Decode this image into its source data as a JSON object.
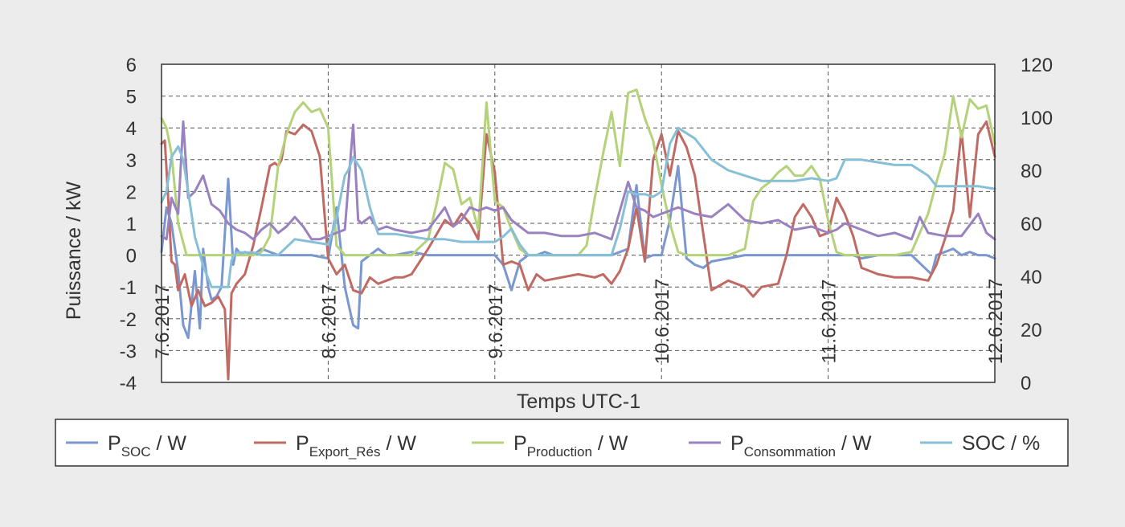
{
  "chart_data": {
    "type": "line",
    "xlabel": "Temps UTC-1",
    "ylabel": "Puissance / kW",
    "ylim": [
      -4,
      6
    ],
    "y2lim": [
      0,
      120
    ],
    "y_ticks": [
      "-4",
      "-3",
      "-2",
      "-1",
      "0",
      "1",
      "2",
      "3",
      "4",
      "5",
      "6"
    ],
    "y2_ticks": [
      "0",
      "20",
      "40",
      "60",
      "80",
      "100",
      "120"
    ],
    "x_ticks": [
      "7.6.2017",
      "8.6.2017",
      "9.6.2017",
      "10.6.2017",
      "11.6.2017",
      "12.6.2017"
    ],
    "xlim": [
      0,
      5
    ],
    "grid": true,
    "legend_position": "bottom",
    "colors": {
      "soc_power": "#7b97cf",
      "export": "#c06a64",
      "production": "#b4d27a",
      "consumption": "#9a82c0",
      "soc": "#87c0d6"
    },
    "series": [
      {
        "key": "soc_power",
        "legend_main": "P",
        "legend_sub": "SOC",
        "legend_rest": " / W",
        "axis": "left",
        "x": [
          0,
          0.03,
          0.06,
          0.1,
          0.13,
          0.16,
          0.2,
          0.23,
          0.25,
          0.28,
          0.3,
          0.33,
          0.36,
          0.4,
          0.43,
          0.45,
          0.48,
          0.5,
          0.55,
          0.6,
          0.65,
          0.7,
          0.75,
          0.8,
          0.9,
          1.0,
          1.05,
          1.1,
          1.15,
          1.18,
          1.2,
          1.25,
          1.3,
          1.35,
          1.4,
          1.5,
          1.6,
          1.7,
          1.8,
          1.9,
          1.95,
          2.0,
          2.05,
          2.1,
          2.15,
          2.2,
          2.25,
          2.3,
          2.35,
          2.4,
          2.5,
          2.6,
          2.7,
          2.8,
          2.85,
          2.9,
          2.95,
          3.0,
          3.05,
          3.1,
          3.15,
          3.2,
          3.25,
          3.3,
          3.4,
          3.5,
          3.6,
          3.7,
          3.8,
          3.9,
          4.0,
          4.05,
          4.1,
          4.15,
          4.2,
          4.3,
          4.4,
          4.5,
          4.6,
          4.62,
          4.65,
          4.7,
          4.75,
          4.8,
          4.85,
          4.9,
          4.95,
          5.0
        ],
        "y": [
          0.1,
          1.5,
          1.0,
          -0.5,
          -2.2,
          -2.6,
          -0.5,
          -2.3,
          0.2,
          -1.0,
          -1.4,
          -1.3,
          -1.0,
          2.4,
          -0.3,
          0.2,
          0.0,
          0.1,
          0.0,
          0.2,
          0.1,
          0.0,
          0.0,
          0.0,
          0.0,
          -0.1,
          1.5,
          -1.0,
          -2.2,
          -2.3,
          -0.2,
          0.0,
          0.2,
          0.0,
          0.0,
          0.1,
          0.0,
          0.0,
          0.0,
          0.0,
          0.0,
          0.0,
          -0.3,
          -1.1,
          -0.2,
          0.0,
          0.0,
          0.1,
          0.0,
          0.0,
          0.0,
          0.0,
          0.0,
          0.2,
          2.2,
          -0.1,
          0.0,
          0.0,
          1.1,
          2.8,
          -0.1,
          -0.3,
          -0.4,
          -0.2,
          -0.1,
          0.0,
          0.0,
          0.0,
          0.0,
          0.0,
          0.0,
          0.0,
          0.0,
          0.0,
          -0.1,
          0.0,
          0.0,
          0.0,
          -0.5,
          -0.6,
          0.0,
          0.1,
          0.2,
          0.0,
          0.1,
          0.0,
          0.0,
          -0.1
        ]
      },
      {
        "key": "export",
        "legend_main": "P",
        "legend_sub": "Export_Rés",
        "legend_rest": " / W",
        "axis": "left",
        "x": [
          0,
          0.02,
          0.04,
          0.06,
          0.08,
          0.1,
          0.14,
          0.18,
          0.22,
          0.26,
          0.3,
          0.34,
          0.38,
          0.4,
          0.42,
          0.45,
          0.5,
          0.55,
          0.6,
          0.65,
          0.68,
          0.7,
          0.72,
          0.75,
          0.8,
          0.85,
          0.9,
          0.95,
          1.0,
          1.05,
          1.1,
          1.15,
          1.2,
          1.25,
          1.3,
          1.35,
          1.4,
          1.45,
          1.5,
          1.6,
          1.7,
          1.75,
          1.8,
          1.85,
          1.9,
          1.95,
          2.0,
          2.05,
          2.1,
          2.15,
          2.2,
          2.25,
          2.3,
          2.4,
          2.5,
          2.6,
          2.65,
          2.7,
          2.75,
          2.8,
          2.85,
          2.9,
          2.95,
          3.0,
          3.05,
          3.1,
          3.15,
          3.2,
          3.3,
          3.4,
          3.5,
          3.55,
          3.6,
          3.7,
          3.75,
          3.8,
          3.85,
          3.9,
          3.95,
          4.0,
          4.05,
          4.1,
          4.15,
          4.2,
          4.3,
          4.4,
          4.5,
          4.6,
          4.65,
          4.7,
          4.75,
          4.8,
          4.85,
          4.9,
          4.95,
          5.0
        ],
        "y": [
          3.5,
          3.6,
          1.8,
          -0.2,
          -0.3,
          -1.1,
          -0.6,
          -1.6,
          -1.1,
          -1.6,
          -1.5,
          -1.3,
          -1.7,
          -3.9,
          -1.2,
          -0.9,
          -0.6,
          0.3,
          1.5,
          2.8,
          2.9,
          2.8,
          3.0,
          3.9,
          3.8,
          4.1,
          3.9,
          3.1,
          -0.1,
          -0.6,
          -0.3,
          -1.1,
          -1.2,
          -0.7,
          -0.9,
          -0.8,
          -0.7,
          -0.7,
          -0.6,
          0.2,
          1.1,
          0.9,
          1.3,
          1.0,
          0.5,
          3.8,
          2.6,
          -0.3,
          -0.2,
          -0.3,
          -1.1,
          -0.6,
          -0.8,
          -0.7,
          -0.6,
          -0.7,
          -0.6,
          -0.9,
          -0.5,
          0.2,
          1.5,
          -0.2,
          3.0,
          3.8,
          2.5,
          3.9,
          3.4,
          2.5,
          -1.1,
          -0.8,
          -1.0,
          -1.3,
          -1.0,
          -0.9,
          0.0,
          1.2,
          1.6,
          1.2,
          0.6,
          0.7,
          1.8,
          1.3,
          0.6,
          -0.4,
          -0.6,
          -0.7,
          -0.7,
          -0.8,
          -0.3,
          0.5,
          1.4,
          3.9,
          1.2,
          3.8,
          4.2,
          3.1
        ]
      },
      {
        "key": "production",
        "legend_main": "P",
        "legend_sub": "Production",
        "legend_rest": " / W",
        "axis": "left",
        "x": [
          0,
          0.03,
          0.06,
          0.1,
          0.15,
          0.2,
          0.3,
          0.4,
          0.5,
          0.55,
          0.6,
          0.65,
          0.7,
          0.75,
          0.8,
          0.85,
          0.9,
          0.95,
          1.0,
          1.05,
          1.1,
          1.15,
          1.2,
          1.3,
          1.4,
          1.5,
          1.6,
          1.65,
          1.7,
          1.75,
          1.8,
          1.85,
          1.9,
          1.95,
          2.0,
          2.05,
          2.1,
          2.15,
          2.2,
          2.3,
          2.4,
          2.5,
          2.55,
          2.6,
          2.65,
          2.7,
          2.75,
          2.8,
          2.85,
          2.9,
          2.95,
          3.0,
          3.05,
          3.1,
          3.15,
          3.2,
          3.25,
          3.3,
          3.4,
          3.5,
          3.55,
          3.6,
          3.65,
          3.7,
          3.75,
          3.8,
          3.85,
          3.9,
          3.95,
          4.0,
          4.05,
          4.1,
          4.15,
          4.2,
          4.3,
          4.4,
          4.5,
          4.6,
          4.65,
          4.7,
          4.75,
          4.8,
          4.85,
          4.9,
          4.95,
          5.0
        ],
        "y": [
          4.3,
          4.0,
          3.2,
          1.0,
          0.0,
          0.0,
          0.0,
          0.0,
          0.0,
          0.0,
          0.1,
          0.6,
          2.8,
          3.8,
          4.5,
          4.8,
          4.5,
          4.6,
          4.0,
          0.3,
          0.0,
          0.0,
          0.0,
          0.0,
          0.0,
          0.0,
          0.5,
          1.6,
          2.9,
          2.7,
          1.6,
          1.8,
          0.8,
          4.8,
          1.7,
          1.5,
          0.8,
          0.2,
          0.0,
          0.0,
          0.0,
          0.0,
          0.3,
          1.8,
          3.2,
          4.5,
          2.8,
          5.1,
          5.2,
          4.3,
          3.6,
          2.2,
          1.0,
          0.1,
          0.0,
          0.0,
          0.0,
          0.0,
          0.0,
          0.2,
          1.7,
          2.1,
          2.3,
          2.6,
          2.8,
          2.5,
          2.5,
          2.8,
          2.4,
          1.1,
          0.1,
          0.0,
          0.0,
          0.0,
          0.0,
          0.0,
          0.1,
          1.3,
          2.3,
          3.2,
          5.0,
          3.7,
          4.9,
          4.6,
          4.7,
          3.5
        ]
      },
      {
        "key": "consumption",
        "legend_main": "P",
        "legend_sub": "Consommation",
        "legend_rest": " / W",
        "axis": "left",
        "x": [
          0,
          0.03,
          0.06,
          0.1,
          0.13,
          0.16,
          0.2,
          0.25,
          0.3,
          0.35,
          0.4,
          0.45,
          0.5,
          0.55,
          0.6,
          0.65,
          0.7,
          0.75,
          0.8,
          0.85,
          0.9,
          0.95,
          1.0,
          1.05,
          1.1,
          1.15,
          1.18,
          1.2,
          1.25,
          1.3,
          1.35,
          1.4,
          1.5,
          1.6,
          1.7,
          1.75,
          1.8,
          1.85,
          1.9,
          1.95,
          2.0,
          2.05,
          2.1,
          2.15,
          2.2,
          2.3,
          2.4,
          2.5,
          2.6,
          2.7,
          2.75,
          2.8,
          2.85,
          2.9,
          2.95,
          3.0,
          3.05,
          3.1,
          3.2,
          3.3,
          3.4,
          3.5,
          3.6,
          3.7,
          3.8,
          3.9,
          4.0,
          4.05,
          4.1,
          4.2,
          4.3,
          4.4,
          4.5,
          4.55,
          4.6,
          4.7,
          4.8,
          4.9,
          4.95,
          5.0
        ],
        "y": [
          0.6,
          0.5,
          1.8,
          1.3,
          4.2,
          1.8,
          2.0,
          2.5,
          1.6,
          1.4,
          1.0,
          0.8,
          0.7,
          0.5,
          0.8,
          1.0,
          0.7,
          0.9,
          1.2,
          0.9,
          0.5,
          0.5,
          0.6,
          0.7,
          0.8,
          4.1,
          1.1,
          1.0,
          1.2,
          0.8,
          0.9,
          0.8,
          0.7,
          0.8,
          1.5,
          0.9,
          1.1,
          1.5,
          1.4,
          1.5,
          1.4,
          1.5,
          1.1,
          0.9,
          0.7,
          0.7,
          0.6,
          0.6,
          0.7,
          0.5,
          1.4,
          2.3,
          1.5,
          1.4,
          1.2,
          1.3,
          1.4,
          1.5,
          1.3,
          1.2,
          1.6,
          1.1,
          1.0,
          1.1,
          0.8,
          0.9,
          0.7,
          0.8,
          1.0,
          0.8,
          0.6,
          0.7,
          0.5,
          1.2,
          0.7,
          0.6,
          0.6,
          1.3,
          0.7,
          0.5
        ]
      },
      {
        "key": "soc",
        "legend_main": "SOC / %",
        "legend_sub": "",
        "legend_rest": "",
        "axis": "right",
        "x": [
          0,
          0.03,
          0.06,
          0.1,
          0.13,
          0.16,
          0.2,
          0.25,
          0.3,
          0.35,
          0.4,
          0.42,
          0.45,
          0.5,
          0.55,
          0.6,
          0.65,
          0.7,
          0.8,
          0.9,
          1.0,
          1.05,
          1.1,
          1.12,
          1.15,
          1.2,
          1.25,
          1.3,
          1.4,
          1.5,
          1.6,
          1.7,
          1.8,
          1.9,
          2.0,
          2.05,
          2.1,
          2.15,
          2.2,
          2.3,
          2.4,
          2.5,
          2.6,
          2.7,
          2.75,
          2.8,
          2.85,
          2.9,
          2.95,
          3.0,
          3.05,
          3.1,
          3.15,
          3.2,
          3.25,
          3.3,
          3.4,
          3.5,
          3.6,
          3.7,
          3.8,
          3.9,
          4.0,
          4.05,
          4.1,
          4.2,
          4.3,
          4.4,
          4.5,
          4.6,
          4.65,
          4.7,
          4.8,
          4.9,
          5.0
        ],
        "y": [
          68,
          72,
          85,
          89,
          84,
          72,
          55,
          44,
          36,
          36,
          36,
          46,
          49,
          49,
          49,
          48,
          48,
          48,
          54,
          53,
          52,
          62,
          78,
          80,
          85,
          80,
          66,
          56,
          56,
          55,
          54,
          54,
          53,
          53,
          53,
          55,
          58,
          52,
          48,
          48,
          48,
          48,
          48,
          48,
          58,
          72,
          71,
          71,
          70,
          72,
          90,
          96,
          94,
          92,
          88,
          84,
          80,
          78,
          76,
          76,
          76,
          77,
          76,
          77,
          84,
          84,
          83,
          82,
          82,
          78,
          74,
          74,
          74,
          74,
          73
        ]
      }
    ]
  }
}
